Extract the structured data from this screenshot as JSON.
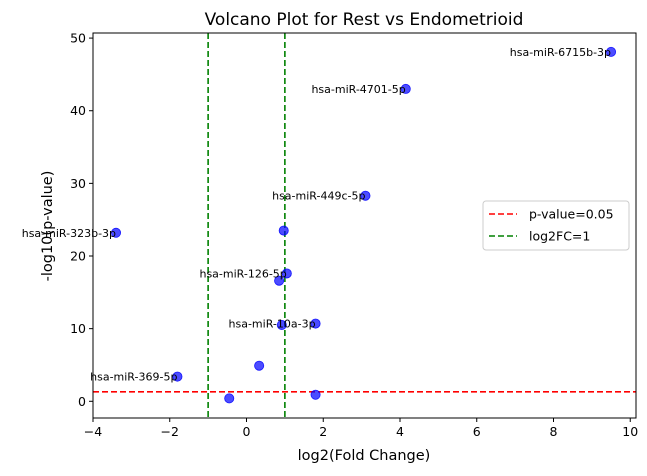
{
  "chart_data": {
    "type": "scatter",
    "title": "Volcano Plot for Rest vs Endometrioid",
    "xlabel": "log2(Fold Change)",
    "ylabel": "-log10(p-value)",
    "xlim": [
      -4,
      10.15
    ],
    "ylim": [
      -2.3,
      50.7
    ],
    "xticks": [
      -4,
      -2,
      0,
      2,
      4,
      6,
      8,
      10
    ],
    "yticks": [
      0,
      10,
      20,
      30,
      40,
      50
    ],
    "grid": false,
    "point_color": "#0000ff",
    "points": [
      {
        "x": 9.5,
        "y": 48.1,
        "label": "hsa-miR-6715b-3p"
      },
      {
        "x": 4.15,
        "y": 43.0,
        "label": "hsa-miR-4701-5p"
      },
      {
        "x": 3.1,
        "y": 28.3,
        "label": "hsa-miR-449c-5p"
      },
      {
        "x": -3.4,
        "y": 23.2,
        "label": "hsa-miR-323b-3p"
      },
      {
        "x": 0.97,
        "y": 23.5,
        "label": ""
      },
      {
        "x": 1.05,
        "y": 17.6,
        "label": "hsa-miR-126-5p"
      },
      {
        "x": 0.85,
        "y": 16.6,
        "label": ""
      },
      {
        "x": 1.8,
        "y": 10.7,
        "label": "hsa-miR-10a-3p"
      },
      {
        "x": 0.92,
        "y": 10.5,
        "label": ""
      },
      {
        "x": -1.8,
        "y": 3.4,
        "label": "hsa-miR-369-5p"
      },
      {
        "x": 0.33,
        "y": 4.9,
        "label": ""
      },
      {
        "x": -0.45,
        "y": 0.4,
        "label": ""
      },
      {
        "x": 1.8,
        "y": 0.9,
        "label": ""
      }
    ],
    "reference_lines": [
      {
        "orientation": "horizontal",
        "value": 1.301,
        "color": "#ff0000",
        "legend": "p-value=0.05"
      },
      {
        "orientation": "vertical",
        "value": -1,
        "color": "#008000",
        "legend": "log2FC=1"
      },
      {
        "orientation": "vertical",
        "value": 1,
        "color": "#008000",
        "legend": ""
      }
    ],
    "legend_position": "center-right"
  }
}
